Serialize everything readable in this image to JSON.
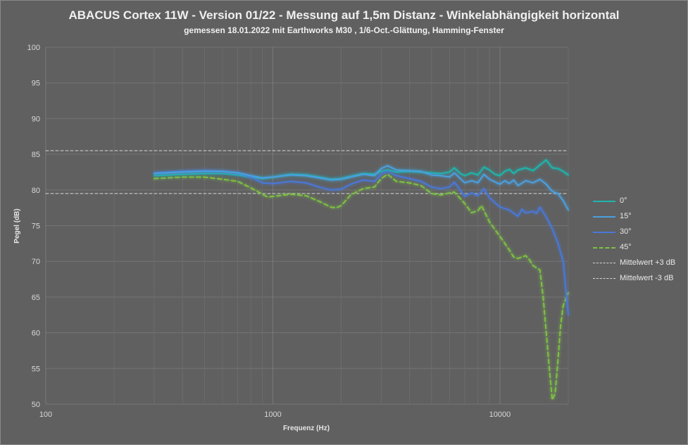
{
  "chart_data": {
    "type": "line",
    "title": "ABACUS Cortex 11W - Version 01/22 - Messung auf 1,5m Distanz - Winkelabhängigkeit horizontal",
    "subtitle": "gemessen 18.01.2022  mit Earthworks M30 , 1/6-Oct.-Glättung, Hamming-Fenster",
    "xlabel": "Frequenz  (Hz)",
    "ylabel": "Pegel (dB)",
    "x_scale": "log",
    "xlim": [
      100,
      20000
    ],
    "ylim": [
      50,
      100
    ],
    "x_ticks": [
      100,
      1000,
      10000
    ],
    "x_tick_labels": [
      "100",
      "1000",
      "10000"
    ],
    "y_ticks": [
      50,
      55,
      60,
      65,
      70,
      75,
      80,
      85,
      90,
      95,
      100
    ],
    "y_tick_labels": [
      "50",
      "55",
      "60",
      "65",
      "70",
      "75",
      "80",
      "85",
      "90",
      "95",
      "100"
    ],
    "grid": true,
    "legend_position": "right",
    "series": [
      {
        "name": "0°",
        "color": "#1fb5ad",
        "style": "solid",
        "points": [
          [
            300,
            82.0
          ],
          [
            400,
            82.2
          ],
          [
            500,
            82.3
          ],
          [
            600,
            82.3
          ],
          [
            700,
            82.1
          ],
          [
            800,
            81.8
          ],
          [
            900,
            81.6
          ],
          [
            1000,
            81.8
          ],
          [
            1200,
            82.2
          ],
          [
            1400,
            82.1
          ],
          [
            1600,
            81.8
          ],
          [
            1800,
            81.5
          ],
          [
            2000,
            81.6
          ],
          [
            2200,
            81.9
          ],
          [
            2500,
            82.3
          ],
          [
            2800,
            82.2
          ],
          [
            3000,
            82.6
          ],
          [
            3200,
            82.8
          ],
          [
            3500,
            82.5
          ],
          [
            4000,
            82.6
          ],
          [
            4500,
            82.5
          ],
          [
            5000,
            82.4
          ],
          [
            5500,
            82.3
          ],
          [
            6000,
            82.5
          ],
          [
            6300,
            83.1
          ],
          [
            6700,
            82.3
          ],
          [
            7000,
            82.0
          ],
          [
            7500,
            82.4
          ],
          [
            8000,
            82.1
          ],
          [
            8500,
            83.2
          ],
          [
            9000,
            82.8
          ],
          [
            9500,
            82.2
          ],
          [
            10000,
            82.0
          ],
          [
            10500,
            82.6
          ],
          [
            11000,
            82.9
          ],
          [
            11500,
            82.3
          ],
          [
            12000,
            82.8
          ],
          [
            13000,
            83.1
          ],
          [
            14000,
            82.7
          ],
          [
            15000,
            83.5
          ],
          [
            16000,
            84.2
          ],
          [
            17000,
            83.1
          ],
          [
            18000,
            83.0
          ],
          [
            19000,
            82.6
          ],
          [
            20000,
            82.1
          ]
        ]
      },
      {
        "name": "15°",
        "color": "#4aa0e0",
        "style": "solid",
        "points": [
          [
            300,
            82.3
          ],
          [
            400,
            82.5
          ],
          [
            500,
            82.6
          ],
          [
            600,
            82.6
          ],
          [
            700,
            82.4
          ],
          [
            800,
            82.0
          ],
          [
            900,
            81.7
          ],
          [
            1000,
            81.8
          ],
          [
            1200,
            82.1
          ],
          [
            1400,
            82.0
          ],
          [
            1600,
            81.7
          ],
          [
            1800,
            81.4
          ],
          [
            2000,
            81.5
          ],
          [
            2200,
            81.8
          ],
          [
            2500,
            82.2
          ],
          [
            2800,
            82.0
          ],
          [
            3000,
            83.0
          ],
          [
            3200,
            83.4
          ],
          [
            3500,
            82.8
          ],
          [
            4000,
            82.7
          ],
          [
            4500,
            82.6
          ],
          [
            5000,
            82.1
          ],
          [
            5500,
            82.0
          ],
          [
            6000,
            81.8
          ],
          [
            6300,
            82.4
          ],
          [
            7000,
            81.0
          ],
          [
            7500,
            81.3
          ],
          [
            8000,
            81.0
          ],
          [
            8500,
            82.2
          ],
          [
            9000,
            81.5
          ],
          [
            10000,
            80.8
          ],
          [
            10500,
            81.3
          ],
          [
            11000,
            80.9
          ],
          [
            11500,
            81.4
          ],
          [
            12000,
            80.6
          ],
          [
            13000,
            81.3
          ],
          [
            14000,
            81.0
          ],
          [
            15000,
            81.5
          ],
          [
            16000,
            80.8
          ],
          [
            17000,
            79.8
          ],
          [
            18000,
            79.5
          ],
          [
            19000,
            78.5
          ],
          [
            20000,
            77.2
          ]
        ]
      },
      {
        "name": "30°",
        "color": "#4a78d8",
        "style": "solid",
        "points": [
          [
            300,
            82.4
          ],
          [
            400,
            82.6
          ],
          [
            500,
            82.7
          ],
          [
            600,
            82.6
          ],
          [
            700,
            82.4
          ],
          [
            800,
            81.8
          ],
          [
            900,
            81.0
          ],
          [
            1000,
            80.9
          ],
          [
            1200,
            81.2
          ],
          [
            1400,
            81.0
          ],
          [
            1600,
            80.4
          ],
          [
            1800,
            80.0
          ],
          [
            2000,
            80.1
          ],
          [
            2200,
            80.8
          ],
          [
            2500,
            81.4
          ],
          [
            2800,
            81.2
          ],
          [
            3000,
            82.2
          ],
          [
            3200,
            82.6
          ],
          [
            3500,
            82.0
          ],
          [
            4000,
            81.6
          ],
          [
            4500,
            81.2
          ],
          [
            5000,
            80.4
          ],
          [
            5500,
            80.2
          ],
          [
            6000,
            80.4
          ],
          [
            6300,
            81.1
          ],
          [
            7000,
            79.1
          ],
          [
            7500,
            79.6
          ],
          [
            8000,
            79.2
          ],
          [
            8500,
            80.2
          ],
          [
            9000,
            78.9
          ],
          [
            10000,
            77.6
          ],
          [
            11000,
            77.2
          ],
          [
            12000,
            76.3
          ],
          [
            12500,
            77.3
          ],
          [
            13000,
            76.8
          ],
          [
            14000,
            77.0
          ],
          [
            14500,
            76.7
          ],
          [
            15000,
            77.6
          ],
          [
            16000,
            76.2
          ],
          [
            17000,
            74.6
          ],
          [
            18000,
            72.6
          ],
          [
            19000,
            70.0
          ],
          [
            20000,
            62.5
          ]
        ]
      },
      {
        "name": "45°",
        "color": "#7dc142",
        "style": "dashed",
        "points": [
          [
            300,
            81.6
          ],
          [
            400,
            81.8
          ],
          [
            500,
            81.8
          ],
          [
            600,
            81.5
          ],
          [
            700,
            81.2
          ],
          [
            800,
            80.3
          ],
          [
            900,
            79.4
          ],
          [
            950,
            79.0
          ],
          [
            1000,
            79.1
          ],
          [
            1200,
            79.4
          ],
          [
            1400,
            79.2
          ],
          [
            1600,
            78.4
          ],
          [
            1800,
            77.6
          ],
          [
            1900,
            77.5
          ],
          [
            2000,
            77.8
          ],
          [
            2200,
            79.3
          ],
          [
            2500,
            80.2
          ],
          [
            2800,
            80.4
          ],
          [
            3000,
            81.6
          ],
          [
            3200,
            82.2
          ],
          [
            3500,
            81.2
          ],
          [
            4000,
            81.0
          ],
          [
            4500,
            80.6
          ],
          [
            5000,
            79.5
          ],
          [
            5500,
            79.3
          ],
          [
            6000,
            79.6
          ],
          [
            6300,
            79.7
          ],
          [
            7000,
            78.1
          ],
          [
            7500,
            76.8
          ],
          [
            8000,
            77.1
          ],
          [
            8300,
            77.8
          ],
          [
            9000,
            75.5
          ],
          [
            10000,
            73.5
          ],
          [
            11000,
            71.6
          ],
          [
            11500,
            70.6
          ],
          [
            12000,
            70.4
          ],
          [
            13000,
            70.8
          ],
          [
            13500,
            70.2
          ],
          [
            14000,
            69.4
          ],
          [
            15000,
            68.8
          ],
          [
            15500,
            65.0
          ],
          [
            16000,
            60.0
          ],
          [
            16500,
            55.0
          ],
          [
            17000,
            50.6
          ],
          [
            17500,
            51.5
          ],
          [
            18000,
            56.0
          ],
          [
            18500,
            61.0
          ],
          [
            19000,
            63.8
          ],
          [
            20000,
            65.6
          ]
        ]
      },
      {
        "name": "Mittelwert +3 dB",
        "color": "#d6d6d6",
        "style": "dashed",
        "points": [
          [
            100,
            85.5
          ],
          [
            20000,
            85.5
          ]
        ]
      },
      {
        "name": "Mittelwert -3 dB",
        "color": "#d6d6d6",
        "style": "dashed",
        "points": [
          [
            100,
            79.5
          ],
          [
            20000,
            79.5
          ]
        ]
      }
    ]
  }
}
